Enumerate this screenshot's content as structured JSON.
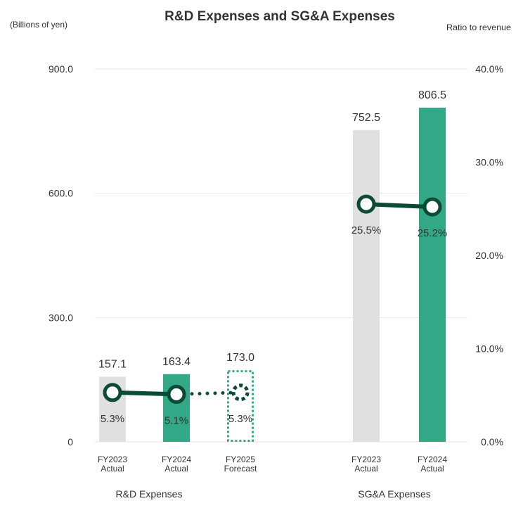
{
  "chart_data": {
    "type": "bar+line",
    "title": "R&D Expenses and SG&A Expenses",
    "ylabel_left": "(Billions of yen)",
    "ylabel_right": "Ratio  to revenue",
    "ylim_left": [
      0,
      900
    ],
    "ylim_right": [
      0,
      40
    ],
    "yticks_left": [
      "0",
      "300.0",
      "600.0",
      "900.0"
    ],
    "yticks_right": [
      "0.0%",
      "10.0%",
      "20.0%",
      "30.0%",
      "40.0%"
    ],
    "grid": true,
    "groups": [
      {
        "label": "R&D Expenses",
        "categories": [
          {
            "label1": "FY2023",
            "label2": "Actual",
            "value": 157.1,
            "value_label": "157.1",
            "ratio": 5.3,
            "ratio_label": "5.3%",
            "style": "prior"
          },
          {
            "label1": "FY2024",
            "label2": "Actual",
            "value": 163.4,
            "value_label": "163.4",
            "ratio": 5.1,
            "ratio_label": "5.1%",
            "style": "current"
          },
          {
            "label1": "FY2025",
            "label2": "Forecast",
            "value": 173.0,
            "value_label": "173.0",
            "ratio": 5.3,
            "ratio_label": "5.3%",
            "style": "forecast"
          }
        ]
      },
      {
        "label": "SG&A  Expenses",
        "categories": [
          {
            "label1": "FY2023",
            "label2": "Actual",
            "value": 752.5,
            "value_label": "752.5",
            "ratio": 25.5,
            "ratio_label": "25.5%",
            "style": "prior"
          },
          {
            "label1": "FY2024",
            "label2": "Actual",
            "value": 806.5,
            "value_label": "806.5",
            "ratio": 25.2,
            "ratio_label": "25.2%",
            "style": "current"
          }
        ]
      }
    ],
    "colors": {
      "prior": "#e0e0e0",
      "current": "#33a887",
      "line": "#0b4a35",
      "grid": "#e6e6e6"
    }
  }
}
